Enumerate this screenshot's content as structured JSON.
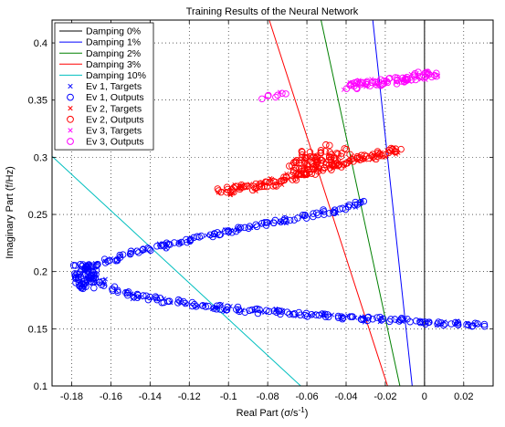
{
  "chart_data": {
    "type": "scatter",
    "title": "Training Results of the Neural Network",
    "xlabel": "Real Part (σ/s",
    "xlabel_sup": "-1",
    "xlabel_close": ")",
    "ylabel": "Imaginary Part (f/Hz)",
    "xlim": [
      -0.19,
      0.035
    ],
    "ylim": [
      0.1,
      0.42
    ],
    "x_ticks": [
      -0.18,
      -0.16,
      -0.14,
      -0.12,
      -0.1,
      -0.08,
      -0.06,
      -0.04,
      -0.02,
      0,
      0.02
    ],
    "x_tick_labels": [
      "-0.18",
      "-0.16",
      "-0.14",
      "-0.12",
      "-0.1",
      "-0.08",
      "-0.06",
      "-0.04",
      "-0.02",
      "0",
      "0.02"
    ],
    "y_ticks": [
      0.1,
      0.15,
      0.2,
      0.25,
      0.3,
      0.35,
      0.4
    ],
    "y_tick_labels": [
      "0.1",
      "0.15",
      "0.2",
      "0.25",
      "0.3",
      "0.35",
      "0.4"
    ],
    "grid": true,
    "legend_position": "top-left",
    "damping_lines": [
      {
        "name": "Damping 0%",
        "zeta": 0.0,
        "color": "#000000"
      },
      {
        "name": "Damping 1%",
        "zeta": 0.01,
        "color": "#0000ff"
      },
      {
        "name": "Damping 2%",
        "zeta": 0.02,
        "color": "#008000"
      },
      {
        "name": "Damping 3%",
        "zeta": 0.03,
        "color": "#ff0000"
      },
      {
        "name": "Damping 10%",
        "zeta": 0.1,
        "color": "#00bfbf"
      }
    ],
    "series": [
      {
        "name": "Ev 1, Targets",
        "marker": "x",
        "color": "#0000ff"
      },
      {
        "name": "Ev 1, Outputs",
        "marker": "o",
        "color": "#0000ff"
      },
      {
        "name": "Ev 2, Targets",
        "marker": "x",
        "color": "#ff0000"
      },
      {
        "name": "Ev 2, Outputs",
        "marker": "o",
        "color": "#ff0000"
      },
      {
        "name": "Ev 3, Targets",
        "marker": "x",
        "color": "#ff00ff"
      },
      {
        "name": "Ev 3, Outputs",
        "marker": "o",
        "color": "#ff00ff"
      }
    ],
    "clusters": [
      {
        "series": "Ev 1",
        "color": "#0000ff",
        "path": [
          [
            0.03,
            0.153
          ],
          [
            0.01,
            0.155
          ],
          [
            -0.01,
            0.157
          ],
          [
            -0.03,
            0.159
          ],
          [
            -0.05,
            0.161
          ],
          [
            -0.07,
            0.164
          ],
          [
            -0.09,
            0.166
          ],
          [
            -0.11,
            0.17
          ],
          [
            -0.13,
            0.174
          ],
          [
            -0.15,
            0.18
          ],
          [
            -0.162,
            0.187
          ],
          [
            -0.172,
            0.196
          ],
          [
            -0.175,
            0.2
          ],
          [
            -0.17,
            0.204
          ],
          [
            -0.155,
            0.213
          ],
          [
            -0.14,
            0.22
          ],
          [
            -0.12,
            0.228
          ],
          [
            -0.1,
            0.235
          ],
          [
            -0.08,
            0.242
          ],
          [
            -0.06,
            0.249
          ],
          [
            -0.045,
            0.254
          ],
          [
            -0.03,
            0.262
          ]
        ]
      },
      {
        "series": "Ev 2",
        "color": "#ff0000",
        "path": [
          [
            -0.105,
            0.27
          ],
          [
            -0.09,
            0.274
          ],
          [
            -0.075,
            0.278
          ],
          [
            -0.06,
            0.286
          ],
          [
            -0.05,
            0.291
          ],
          [
            -0.04,
            0.296
          ],
          [
            -0.03,
            0.3
          ],
          [
            -0.02,
            0.304
          ],
          [
            -0.012,
            0.308
          ]
        ],
        "extra": [
          [
            -0.06,
            0.295
          ],
          [
            -0.055,
            0.3
          ],
          [
            -0.045,
            0.305
          ],
          [
            -0.062,
            0.29
          ],
          [
            -0.05,
            0.298
          ]
        ]
      },
      {
        "series": "Ev 3",
        "color": "#ff00ff",
        "path": [
          [
            -0.083,
            0.352
          ],
          [
            -0.075,
            0.354
          ],
          [
            -0.07,
            0.356
          ]
        ],
        "extra_path": [
          [
            -0.04,
            0.362
          ],
          [
            -0.03,
            0.364
          ],
          [
            -0.02,
            0.366
          ],
          [
            -0.01,
            0.369
          ],
          [
            0.0,
            0.372
          ],
          [
            0.006,
            0.374
          ]
        ]
      }
    ]
  }
}
